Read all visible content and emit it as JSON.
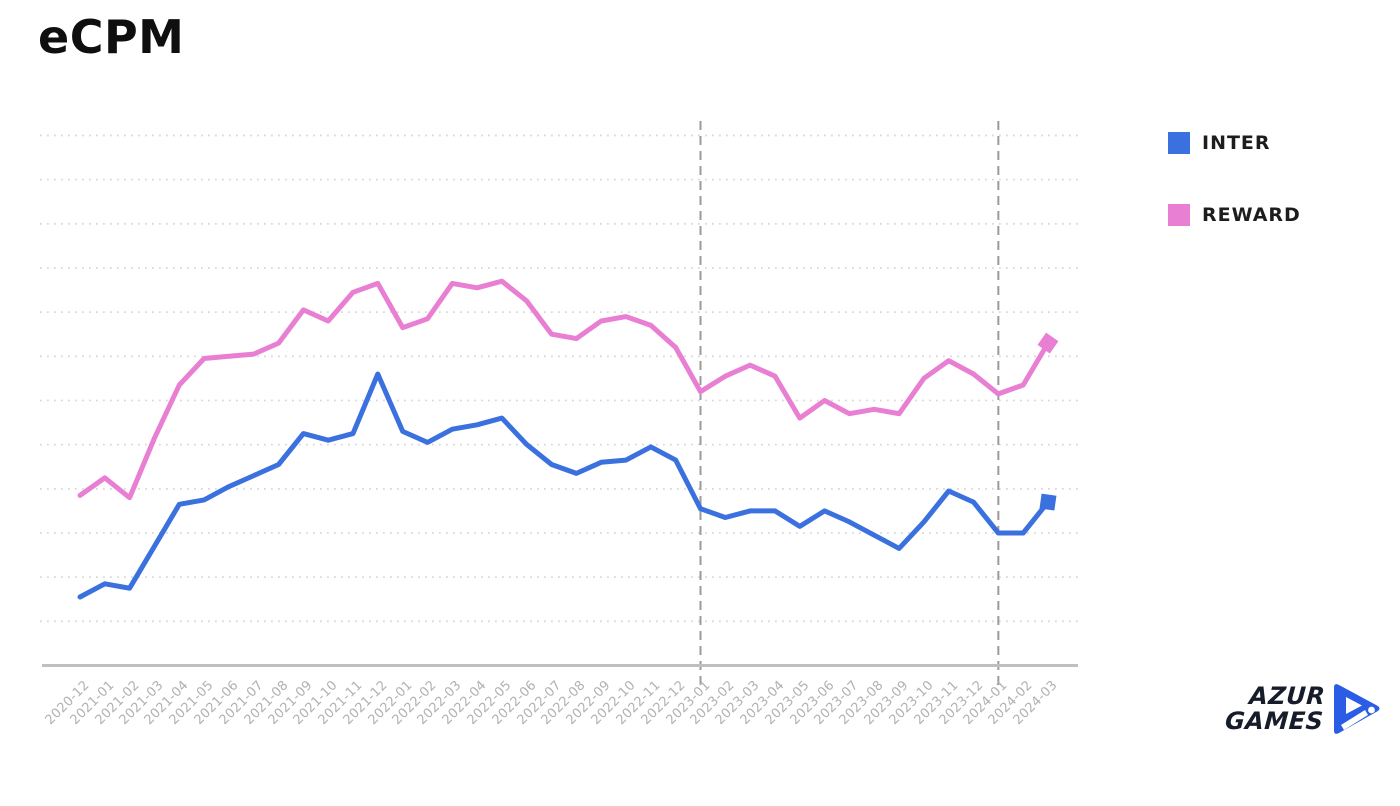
{
  "title": "eCPM",
  "chart_data": {
    "type": "line",
    "title": "eCPM",
    "x": [
      "2020-12",
      "2021-01",
      "2021-02",
      "2021-03",
      "2021-04",
      "2021-05",
      "2021-06",
      "2021-07",
      "2021-08",
      "2021-09",
      "2021-10",
      "2021-11",
      "2021-12",
      "2022-01",
      "2022-02",
      "2022-03",
      "2022-04",
      "2022-05",
      "2022-06",
      "2022-07",
      "2022-08",
      "2022-09",
      "2022-10",
      "2022-11",
      "2022-12",
      "2023-01",
      "2023-02",
      "2023-03",
      "2023-04",
      "2023-05",
      "2023-06",
      "2023-07",
      "2023-08",
      "2023-09",
      "2023-10",
      "2023-11",
      "2023-12",
      "2024-01",
      "2024-02",
      "2024-03"
    ],
    "series": [
      {
        "name": "INTER",
        "color": "#3b71df",
        "end_marker": "square",
        "values": [
          1.55,
          1.85,
          1.75,
          2.7,
          3.65,
          3.75,
          4.05,
          4.3,
          4.55,
          5.25,
          5.1,
          5.25,
          6.6,
          5.3,
          5.05,
          5.35,
          5.45,
          5.6,
          5.0,
          4.55,
          4.35,
          4.6,
          4.65,
          4.95,
          4.65,
          3.55,
          3.35,
          3.5,
          3.5,
          3.15,
          3.5,
          3.25,
          2.95,
          2.65,
          3.25,
          3.95,
          3.7,
          3.0,
          3.0,
          3.7
        ]
      },
      {
        "name": "REWARD",
        "color": "#e87fd2",
        "end_marker": "diamond",
        "values": [
          3.85,
          4.25,
          3.8,
          5.15,
          6.35,
          6.95,
          7.0,
          7.05,
          7.3,
          8.05,
          7.8,
          8.45,
          8.65,
          7.65,
          7.85,
          8.65,
          8.55,
          8.7,
          8.25,
          7.5,
          7.4,
          7.8,
          7.9,
          7.7,
          7.2,
          6.2,
          6.55,
          6.8,
          6.55,
          5.6,
          6.0,
          5.7,
          5.8,
          5.7,
          6.5,
          6.9,
          6.6,
          6.15,
          6.35,
          7.3
        ]
      }
    ],
    "ylim": [
      0,
      12
    ],
    "y_axis_labels_visible": false,
    "y_unit_note": "y axis unlabeled; values estimated in gridline units (1 unit per dotted gridline, 12 gridlines above baseline)",
    "grid": "dotted horizontal gridlines",
    "dashed_vlines_at": [
      "2023-01",
      "2024-01"
    ],
    "legend_position": "right"
  },
  "legend": {
    "inter_label": "INTER",
    "reward_label": "REWARD"
  },
  "logo": {
    "line1": "AZUR",
    "line2": "GAMES"
  },
  "colors": {
    "inter": "#3b71df",
    "reward": "#e87fd2",
    "gridline": "#d9d9d9",
    "axis_line": "#bfbfbf",
    "dashed_line": "#9b9b9b",
    "x_label": "#b2b0b0",
    "title": "#0f0f0f",
    "logo_blue": "#2a5ce5"
  }
}
